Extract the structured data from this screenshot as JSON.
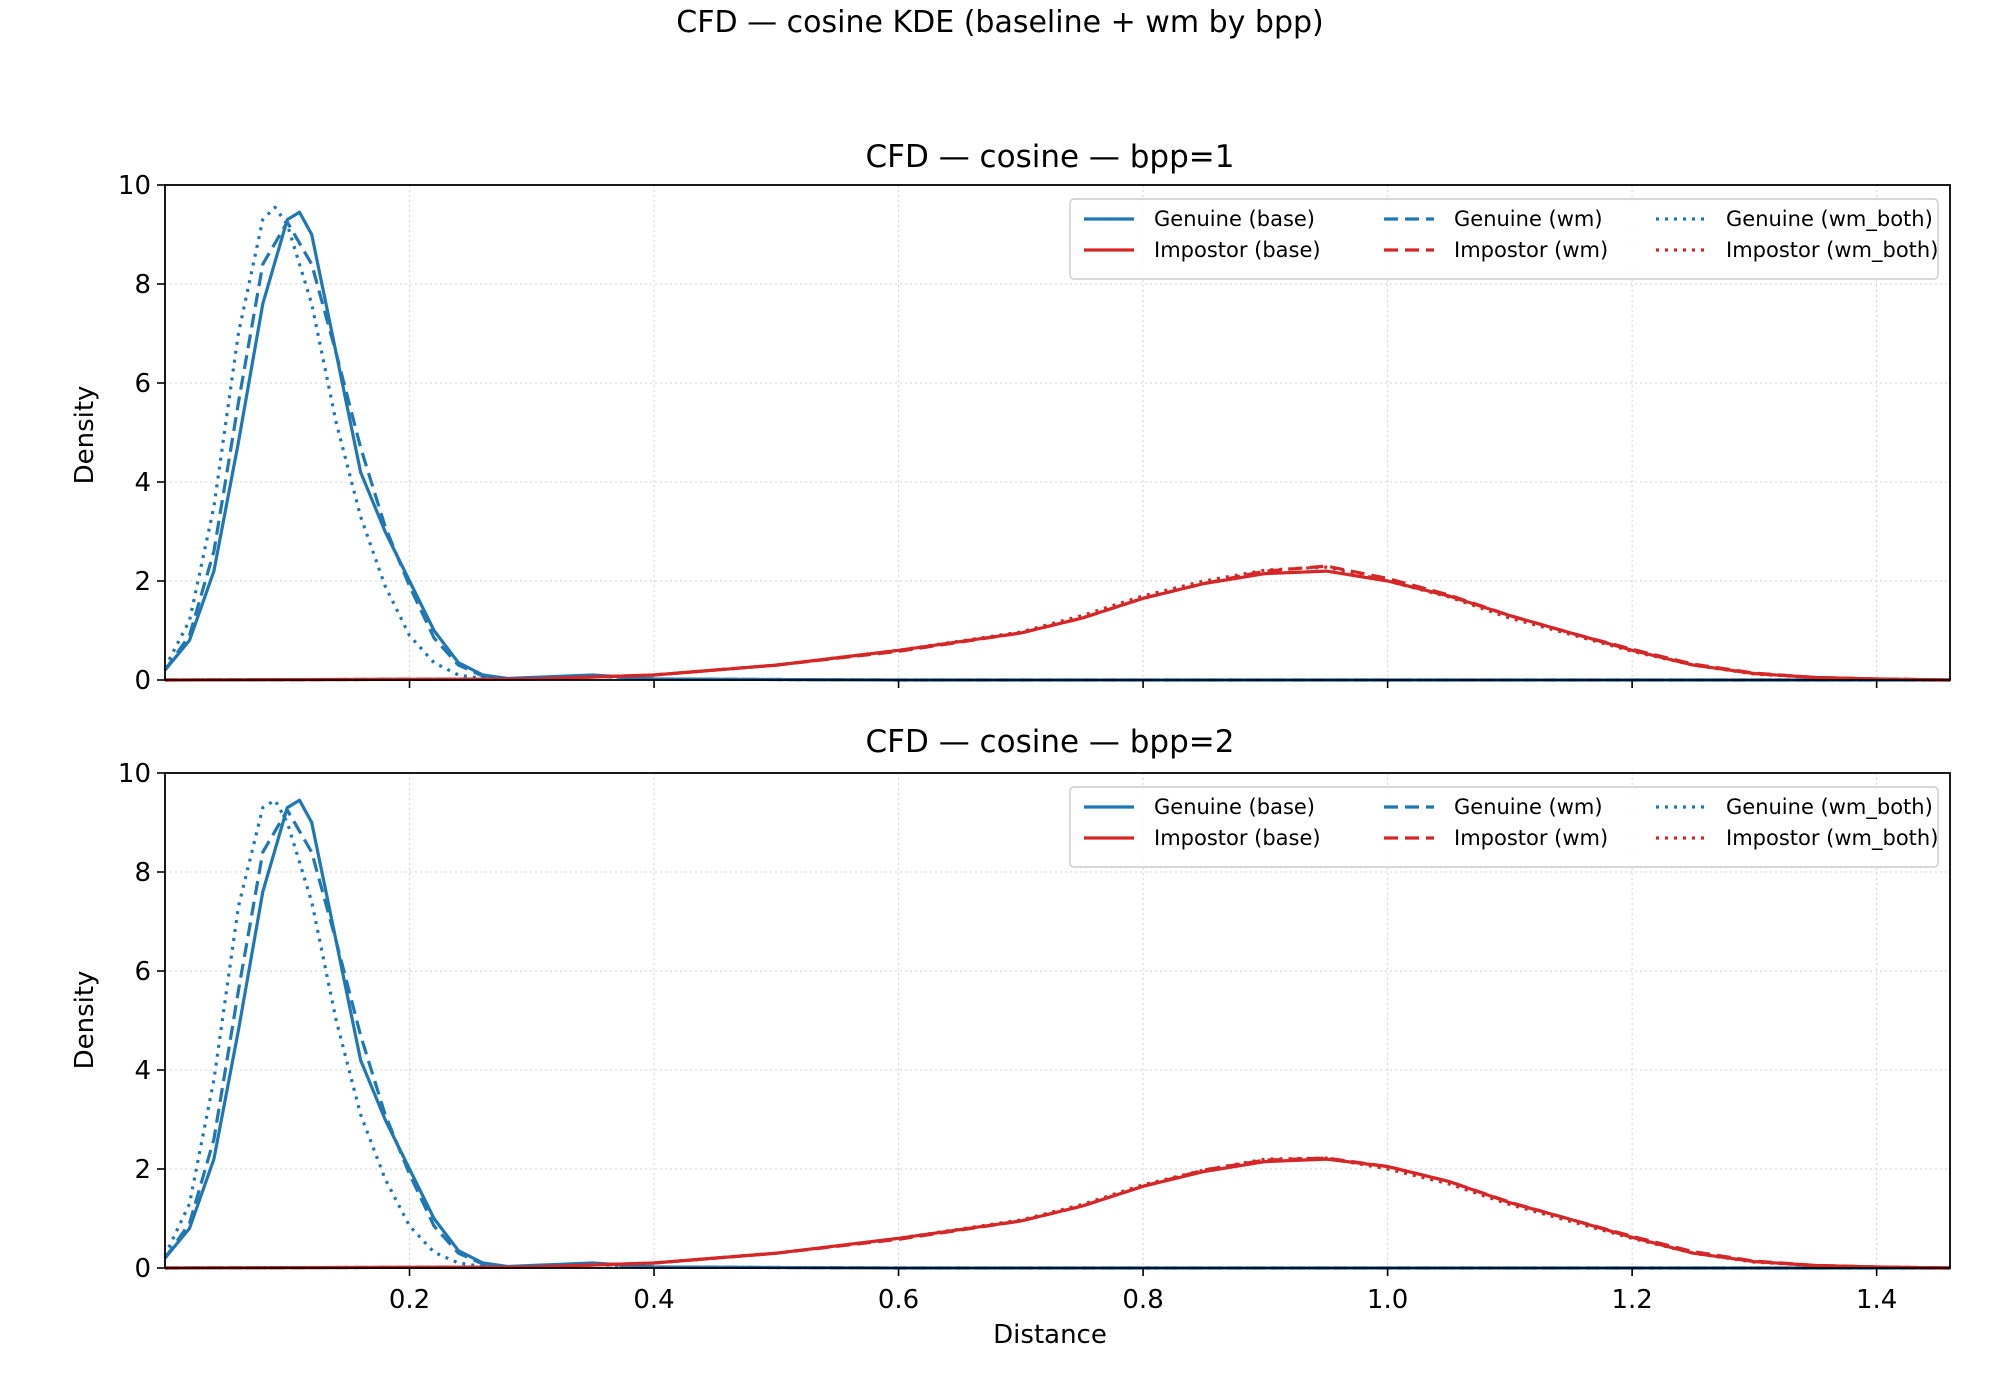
{
  "figure": {
    "suptitle": "CFD — cosine KDE (baseline + wm by bpp)",
    "xlabel": "Distance"
  },
  "colors": {
    "genuine": "#1f77b4",
    "impostor": "#d62728",
    "grid": "#d9d9d9"
  },
  "legend_entries": [
    {
      "label": "Genuine (base)",
      "kind": "genuine",
      "style": "solid"
    },
    {
      "label": "Impostor (base)",
      "kind": "impostor",
      "style": "solid"
    },
    {
      "label": "Genuine (wm)",
      "kind": "genuine",
      "style": "dashed"
    },
    {
      "label": "Impostor (wm)",
      "kind": "impostor",
      "style": "dashed"
    },
    {
      "label": "Genuine (wm_both)",
      "kind": "genuine",
      "style": "dotted"
    },
    {
      "label": "Impostor (wm_both)",
      "kind": "impostor",
      "style": "dotted"
    }
  ],
  "chart_data": [
    {
      "type": "line",
      "title": "CFD — cosine — bpp=1",
      "xlabel": "",
      "ylabel": "Density",
      "xlim": [
        0.0,
        1.46
      ],
      "ylim": [
        0,
        10
      ],
      "xticks": [
        0.2,
        0.4,
        0.6,
        0.8,
        1.0,
        1.2,
        1.4
      ],
      "xtick_labels_shown": false,
      "yticks": [
        0,
        2,
        4,
        6,
        8,
        10
      ],
      "grid": true,
      "legend": "top-right",
      "series": [
        {
          "name": "Genuine (base)",
          "kind": "genuine",
          "style": "solid",
          "x": [
            0.0,
            0.02,
            0.04,
            0.06,
            0.08,
            0.1,
            0.11,
            0.12,
            0.14,
            0.16,
            0.18,
            0.2,
            0.22,
            0.24,
            0.26,
            0.28,
            0.3,
            0.35,
            0.4,
            0.6,
            1.0,
            1.46
          ],
          "y": [
            0.2,
            0.8,
            2.2,
            4.8,
            7.6,
            9.3,
            9.45,
            9.0,
            6.6,
            4.2,
            3.0,
            2.0,
            1.0,
            0.35,
            0.1,
            0.03,
            0.05,
            0.1,
            0.02,
            0.0,
            0.0,
            0.0
          ]
        },
        {
          "name": "Genuine (wm)",
          "kind": "genuine",
          "style": "dashed",
          "x": [
            0.0,
            0.02,
            0.04,
            0.06,
            0.08,
            0.1,
            0.12,
            0.14,
            0.16,
            0.18,
            0.2,
            0.22,
            0.24,
            0.26,
            0.28,
            0.3,
            0.35,
            0.4,
            0.6,
            1.46
          ],
          "y": [
            0.2,
            0.9,
            2.6,
            5.6,
            8.4,
            9.25,
            8.4,
            6.6,
            4.7,
            3.1,
            1.9,
            0.85,
            0.3,
            0.08,
            0.03,
            0.04,
            0.08,
            0.02,
            0.0,
            0.0
          ]
        },
        {
          "name": "Genuine (wm_both)",
          "kind": "genuine",
          "style": "dotted",
          "x": [
            0.0,
            0.02,
            0.04,
            0.06,
            0.08,
            0.09,
            0.1,
            0.12,
            0.14,
            0.16,
            0.18,
            0.2,
            0.22,
            0.24,
            0.26,
            0.28,
            0.3,
            0.35,
            0.4,
            0.6,
            1.46
          ],
          "y": [
            0.25,
            1.2,
            3.5,
            7.0,
            9.3,
            9.55,
            9.2,
            7.6,
            5.2,
            3.3,
            1.9,
            0.9,
            0.35,
            0.1,
            0.03,
            0.02,
            0.04,
            0.08,
            0.02,
            0.0,
            0.0
          ]
        },
        {
          "name": "Impostor (base)",
          "kind": "impostor",
          "style": "solid",
          "x": [
            0.0,
            0.3,
            0.4,
            0.5,
            0.6,
            0.7,
            0.75,
            0.8,
            0.85,
            0.9,
            0.95,
            1.0,
            1.05,
            1.1,
            1.15,
            1.2,
            1.25,
            1.3,
            1.35,
            1.4,
            1.46
          ],
          "y": [
            0.0,
            0.02,
            0.1,
            0.3,
            0.6,
            0.95,
            1.25,
            1.65,
            1.95,
            2.15,
            2.2,
            2.0,
            1.7,
            1.3,
            0.95,
            0.6,
            0.3,
            0.13,
            0.05,
            0.02,
            0.0
          ]
        },
        {
          "name": "Impostor (wm)",
          "kind": "impostor",
          "style": "dashed",
          "x": [
            0.0,
            0.3,
            0.4,
            0.5,
            0.6,
            0.7,
            0.75,
            0.8,
            0.85,
            0.9,
            0.95,
            1.0,
            1.05,
            1.1,
            1.15,
            1.2,
            1.25,
            1.3,
            1.35,
            1.4,
            1.46
          ],
          "y": [
            0.0,
            0.02,
            0.1,
            0.3,
            0.58,
            0.95,
            1.25,
            1.65,
            1.95,
            2.2,
            2.3,
            2.05,
            1.72,
            1.3,
            0.95,
            0.62,
            0.32,
            0.14,
            0.05,
            0.02,
            0.0
          ]
        },
        {
          "name": "Impostor (wm_both)",
          "kind": "impostor",
          "style": "dotted",
          "x": [
            0.0,
            0.3,
            0.4,
            0.5,
            0.6,
            0.7,
            0.75,
            0.8,
            0.85,
            0.9,
            0.95,
            1.0,
            1.05,
            1.1,
            1.15,
            1.2,
            1.25,
            1.3,
            1.35,
            1.4,
            1.46
          ],
          "y": [
            0.0,
            0.02,
            0.1,
            0.3,
            0.6,
            0.97,
            1.3,
            1.7,
            2.0,
            2.22,
            2.28,
            2.0,
            1.68,
            1.25,
            0.92,
            0.58,
            0.3,
            0.12,
            0.05,
            0.02,
            0.0
          ]
        }
      ]
    },
    {
      "type": "line",
      "title": "CFD — cosine — bpp=2",
      "xlabel": "Distance",
      "ylabel": "Density",
      "xlim": [
        0.0,
        1.46
      ],
      "ylim": [
        0,
        10
      ],
      "xticks": [
        0.2,
        0.4,
        0.6,
        0.8,
        1.0,
        1.2,
        1.4
      ],
      "xtick_labels_shown": true,
      "yticks": [
        0,
        2,
        4,
        6,
        8,
        10
      ],
      "grid": true,
      "legend": "top-right",
      "series": [
        {
          "name": "Genuine (base)",
          "kind": "genuine",
          "style": "solid",
          "x": [
            0.0,
            0.02,
            0.04,
            0.06,
            0.08,
            0.1,
            0.11,
            0.12,
            0.14,
            0.16,
            0.18,
            0.2,
            0.22,
            0.24,
            0.26,
            0.28,
            0.3,
            0.35,
            0.4,
            0.6,
            1.0,
            1.46
          ],
          "y": [
            0.2,
            0.8,
            2.2,
            4.8,
            7.6,
            9.3,
            9.45,
            9.0,
            6.6,
            4.2,
            3.0,
            2.0,
            1.0,
            0.35,
            0.1,
            0.03,
            0.05,
            0.1,
            0.02,
            0.0,
            0.0,
            0.0
          ]
        },
        {
          "name": "Genuine (wm)",
          "kind": "genuine",
          "style": "dashed",
          "x": [
            0.0,
            0.02,
            0.04,
            0.06,
            0.08,
            0.1,
            0.12,
            0.14,
            0.16,
            0.18,
            0.2,
            0.22,
            0.24,
            0.26,
            0.28,
            0.3,
            0.35,
            0.4,
            0.6,
            1.46
          ],
          "y": [
            0.2,
            0.9,
            2.6,
            5.6,
            8.4,
            9.25,
            8.4,
            6.6,
            4.7,
            3.1,
            1.9,
            0.85,
            0.3,
            0.08,
            0.03,
            0.04,
            0.08,
            0.02,
            0.0,
            0.0
          ]
        },
        {
          "name": "Genuine (wm_both)",
          "kind": "genuine",
          "style": "dotted",
          "x": [
            0.0,
            0.02,
            0.04,
            0.06,
            0.08,
            0.09,
            0.1,
            0.12,
            0.14,
            0.16,
            0.18,
            0.2,
            0.22,
            0.24,
            0.26,
            0.28,
            0.3,
            0.35,
            0.4,
            0.6,
            1.46
          ],
          "y": [
            0.25,
            1.3,
            3.8,
            7.3,
            9.3,
            9.45,
            9.0,
            7.4,
            5.0,
            3.1,
            1.8,
            0.85,
            0.32,
            0.1,
            0.03,
            0.02,
            0.04,
            0.07,
            0.02,
            0.0,
            0.0
          ]
        },
        {
          "name": "Impostor (base)",
          "kind": "impostor",
          "style": "solid",
          "x": [
            0.0,
            0.3,
            0.4,
            0.5,
            0.6,
            0.7,
            0.75,
            0.8,
            0.85,
            0.9,
            0.95,
            1.0,
            1.05,
            1.1,
            1.15,
            1.2,
            1.25,
            1.3,
            1.35,
            1.4,
            1.46
          ],
          "y": [
            0.0,
            0.02,
            0.1,
            0.3,
            0.6,
            0.95,
            1.25,
            1.65,
            1.95,
            2.15,
            2.2,
            2.05,
            1.75,
            1.32,
            0.98,
            0.62,
            0.3,
            0.13,
            0.05,
            0.02,
            0.0
          ]
        },
        {
          "name": "Impostor (wm)",
          "kind": "impostor",
          "style": "dashed",
          "x": [
            0.0,
            0.3,
            0.4,
            0.5,
            0.6,
            0.7,
            0.75,
            0.8,
            0.85,
            0.9,
            0.95,
            1.0,
            1.05,
            1.1,
            1.15,
            1.2,
            1.25,
            1.3,
            1.35,
            1.4,
            1.46
          ],
          "y": [
            0.0,
            0.02,
            0.1,
            0.3,
            0.58,
            0.95,
            1.25,
            1.65,
            1.98,
            2.18,
            2.22,
            2.05,
            1.75,
            1.33,
            0.98,
            0.64,
            0.33,
            0.14,
            0.05,
            0.02,
            0.0
          ]
        },
        {
          "name": "Impostor (wm_both)",
          "kind": "impostor",
          "style": "dotted",
          "x": [
            0.0,
            0.3,
            0.4,
            0.5,
            0.6,
            0.7,
            0.75,
            0.8,
            0.85,
            0.9,
            0.95,
            1.0,
            1.05,
            1.1,
            1.15,
            1.2,
            1.25,
            1.3,
            1.35,
            1.4,
            1.46
          ],
          "y": [
            0.0,
            0.02,
            0.1,
            0.3,
            0.6,
            0.97,
            1.28,
            1.68,
            1.98,
            2.2,
            2.22,
            2.0,
            1.7,
            1.28,
            0.94,
            0.6,
            0.3,
            0.12,
            0.05,
            0.02,
            0.0
          ]
        }
      ]
    }
  ]
}
